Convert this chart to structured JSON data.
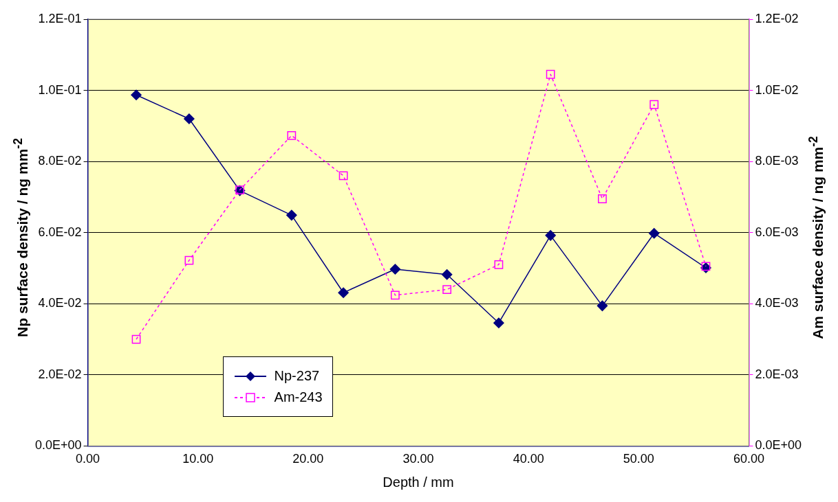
{
  "chart_data": {
    "type": "line",
    "xlabel": "Depth / mm",
    "ylabel": "Np surface density / ng mm$^{-2}$",
    "y2label": "Am surface density / ng mm$^{-2}$",
    "xlim": [
      0,
      60
    ],
    "xticks": [
      {
        "value": 0,
        "label": "0.00"
      },
      {
        "value": 10,
        "label": "10.00"
      },
      {
        "value": 20,
        "label": "20.00"
      },
      {
        "value": 30,
        "label": "30.00"
      },
      {
        "value": 40,
        "label": "40.00"
      },
      {
        "value": 50,
        "label": "50.00"
      },
      {
        "value": 60,
        "label": "60.00"
      }
    ],
    "ylim": [
      0,
      0.12
    ],
    "yticks": [
      {
        "value": 0,
        "label": "0.0E+00"
      },
      {
        "value": 0.02,
        "label": "2.0E-02"
      },
      {
        "value": 0.04,
        "label": "4.0E-02"
      },
      {
        "value": 0.06,
        "label": "6.0E-02"
      },
      {
        "value": 0.08,
        "label": "8.0E-02"
      },
      {
        "value": 0.1,
        "label": "1.0E-01"
      },
      {
        "value": 0.12,
        "label": "1.2E-01"
      }
    ],
    "y2lim": [
      0,
      0.012
    ],
    "y2ticks": [
      {
        "value": 0,
        "label": "0.0E+00"
      },
      {
        "value": 0.002,
        "label": "2.0E-03"
      },
      {
        "value": 0.004,
        "label": "4.0E-03"
      },
      {
        "value": 0.006,
        "label": "6.0E-03"
      },
      {
        "value": 0.008,
        "label": "8.0E-03"
      },
      {
        "value": 0.01,
        "label": "1.0E-02"
      },
      {
        "value": 0.012,
        "label": "1.2E-02"
      }
    ],
    "x": [
      4.4,
      9.2,
      13.8,
      18.5,
      23.2,
      27.9,
      32.6,
      37.3,
      42.0,
      46.7,
      51.4,
      56.1
    ],
    "series": [
      {
        "name": "Np-237",
        "color": "#000080",
        "marker": "diamond",
        "line_style": "solid",
        "values": [
          0.0987,
          0.092,
          0.0718,
          0.0649,
          0.0431,
          0.0497,
          0.0482,
          0.0346,
          0.0592,
          0.0394,
          0.0598,
          0.0501
        ]
      },
      {
        "name": "Am-243",
        "color": "#ff00ff",
        "marker": "square",
        "line_style": "dotted",
        "axis": "y2",
        "values": [
          0.003,
          0.00522,
          0.0072,
          0.00873,
          0.0076,
          0.00424,
          0.0044,
          0.0051,
          0.01045,
          0.00695,
          0.0096,
          0.00505
        ]
      }
    ],
    "grid": "y",
    "legend": "bottom left"
  }
}
